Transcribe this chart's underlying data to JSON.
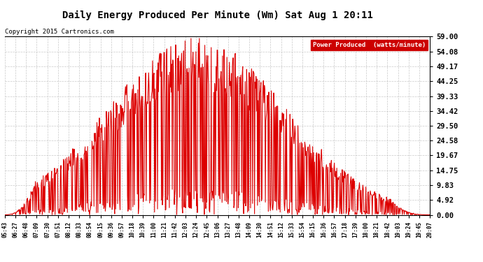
{
  "title": "Daily Energy Produced Per Minute (Wm) Sat Aug 1 20:11",
  "copyright": "Copyright 2015 Cartronics.com",
  "legend_label": "Power Produced  (watts/minute)",
  "line_color": "#dd0000",
  "bg_color": "#ffffff",
  "grid_color": "#bbbbbb",
  "yticks": [
    0.0,
    4.92,
    9.83,
    14.75,
    19.67,
    24.58,
    29.5,
    34.42,
    39.33,
    44.25,
    49.17,
    54.08,
    59.0
  ],
  "ymax": 59.0,
  "ymin": 0.0,
  "xtick_labels": [
    "05:43",
    "06:27",
    "06:48",
    "07:09",
    "07:30",
    "07:51",
    "08:12",
    "08:33",
    "08:54",
    "09:15",
    "09:36",
    "09:57",
    "10:18",
    "10:39",
    "11:00",
    "11:21",
    "11:42",
    "12:03",
    "12:24",
    "12:45",
    "13:06",
    "13:27",
    "13:48",
    "14:09",
    "14:30",
    "14:51",
    "15:12",
    "15:33",
    "15:54",
    "16:15",
    "16:36",
    "16:57",
    "17:18",
    "17:39",
    "18:00",
    "18:21",
    "18:42",
    "19:03",
    "19:24",
    "19:45",
    "20:07"
  ]
}
